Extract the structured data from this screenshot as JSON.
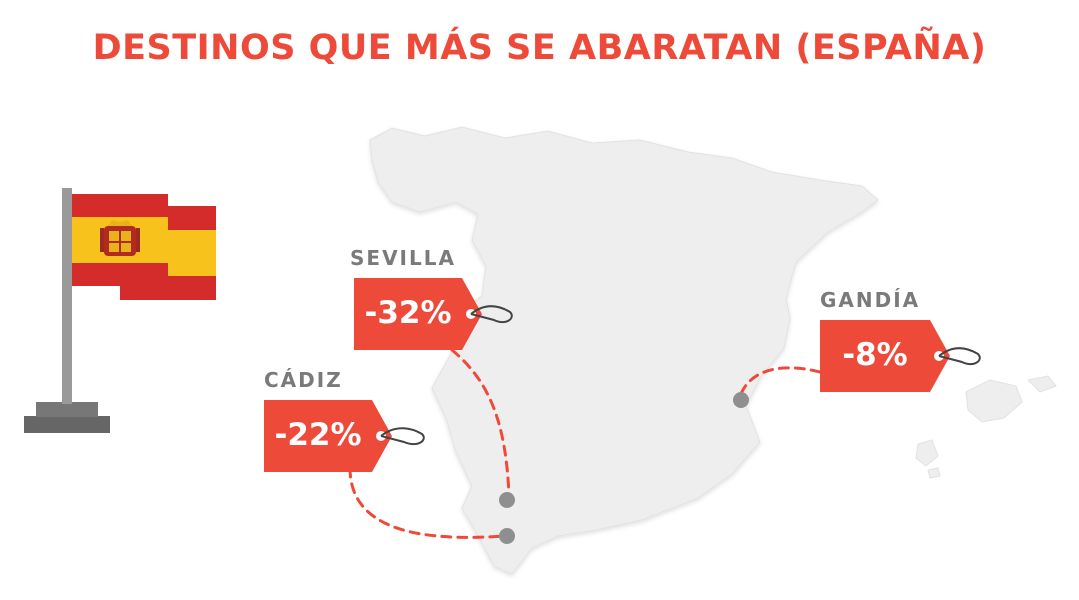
{
  "header": {
    "title": "DESTINOS QUE MÁS SE ABARATAN (ESPAÑA)"
  },
  "destinations": [
    {
      "city": "SEVILLA",
      "discount": "-32%"
    },
    {
      "city": "CÁDIZ",
      "discount": "-22%"
    },
    {
      "city": "GANDÍA",
      "discount": "-8%"
    }
  ],
  "colors": {
    "accent": "#ee4a3a",
    "map": "#eeeeee",
    "label": "#7a7a7a",
    "flag_red": "#d32c2a",
    "flag_yellow": "#f6c21b",
    "pole": "#9a9a9a",
    "base": "#666666"
  },
  "icons": {
    "flag": "spain-flag-icon",
    "map": "spain-map-illustration"
  }
}
